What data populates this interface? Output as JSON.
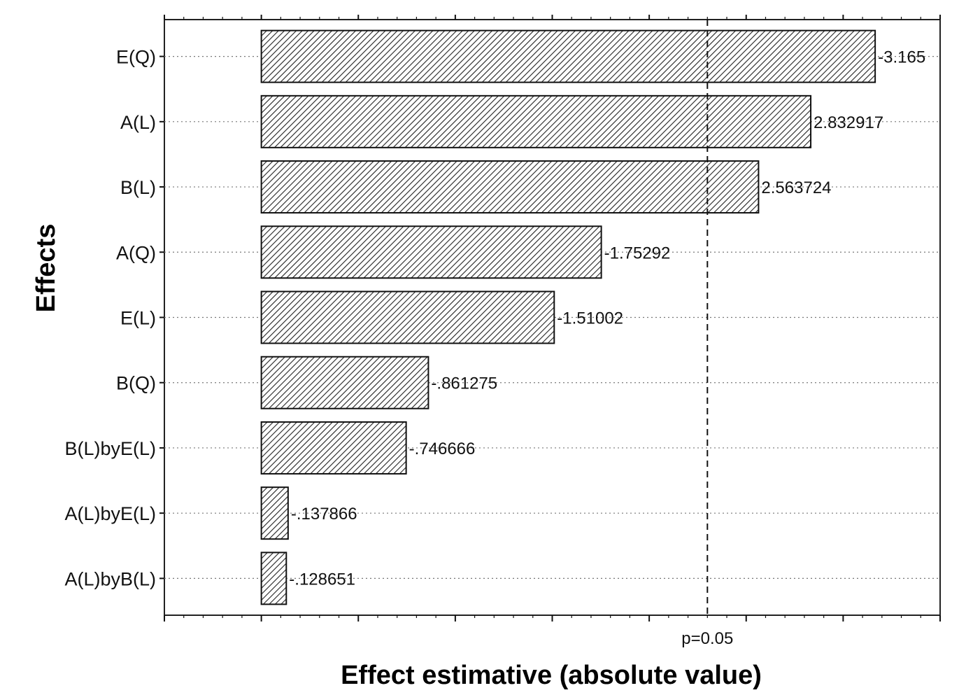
{
  "chart_data": {
    "type": "bar",
    "orientation": "horizontal",
    "title": "",
    "xlabel": "Effect estimative (absolute value)",
    "ylabel": "Effects",
    "categories": [
      "E(Q)",
      "A(L)",
      "B(L)",
      "A(Q)",
      "E(L)",
      "B(Q)",
      "B(L)byE(L)",
      "A(L)byE(L)",
      "A(L)byB(L)"
    ],
    "values": [
      3.165,
      2.832917,
      2.563724,
      1.75292,
      1.51002,
      0.861275,
      0.746666,
      0.137866,
      0.128651
    ],
    "value_labels": [
      "-3.165",
      "2.832917",
      "2.563724",
      "-1.75292",
      "-1.51002",
      "-.861275",
      "-.746666",
      "-.137866",
      "-.128651"
    ],
    "reference_line": {
      "value": 2.3,
      "label": "p=0.05",
      "style": "dashed"
    },
    "xlim": [
      -0.5,
      3.5
    ],
    "bar_fill": "diagonal-hatch",
    "grid": "dotted horizontal at each bar",
    "legend": "none"
  }
}
